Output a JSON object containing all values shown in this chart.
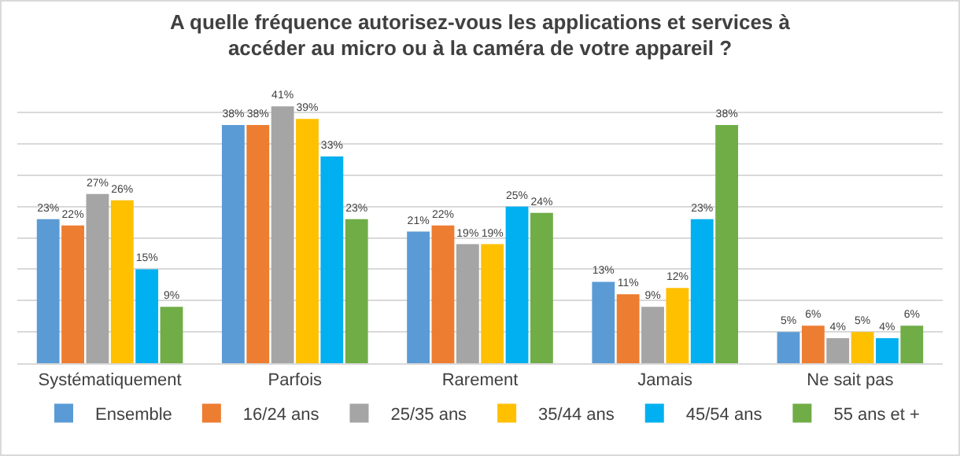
{
  "chart_data": {
    "type": "bar",
    "title": "A quelle fréquence autorisez-vous les applications et services à\naccéder au micro ou à la caméra de votre appareil ?",
    "categories": [
      "Systématiquement",
      "Parfois",
      "Rarement",
      "Jamais",
      "Ne sait pas"
    ],
    "series": [
      {
        "name": "Ensemble",
        "color": "#5b9bd5",
        "values": [
          23,
          38,
          21,
          13,
          5
        ],
        "value_labels": [
          "23%",
          "38%",
          "21%",
          "13%",
          "5%"
        ]
      },
      {
        "name": "16/24 ans",
        "color": "#ed7d31",
        "values": [
          22,
          38,
          22,
          11,
          6
        ],
        "value_labels": [
          "22%",
          "38%",
          "22%",
          "11%",
          "6%"
        ]
      },
      {
        "name": "25/35 ans",
        "color": "#a5a5a5",
        "values": [
          27,
          41,
          19,
          9,
          4
        ],
        "value_labels": [
          "27%",
          "41%",
          "19%",
          "9%",
          "4%"
        ]
      },
      {
        "name": "35/44 ans",
        "color": "#ffc000",
        "values": [
          26,
          39,
          19,
          12,
          5
        ],
        "value_labels": [
          "26%",
          "39%",
          "19%",
          "12%",
          "5%"
        ]
      },
      {
        "name": "45/54 ans",
        "color": "#00b0f0",
        "values": [
          15,
          33,
          25,
          23,
          4
        ],
        "value_labels": [
          "15%",
          "33%",
          "25%",
          "23%",
          "4%"
        ]
      },
      {
        "name": "55 ans et +",
        "color": "#70ad47",
        "values": [
          9,
          23,
          24,
          38,
          6
        ],
        "value_labels": [
          "9%",
          "23%",
          "24%",
          "38%",
          "6%"
        ]
      }
    ],
    "grid": "y",
    "tick_labels": "x",
    "legend": "bottom"
  }
}
